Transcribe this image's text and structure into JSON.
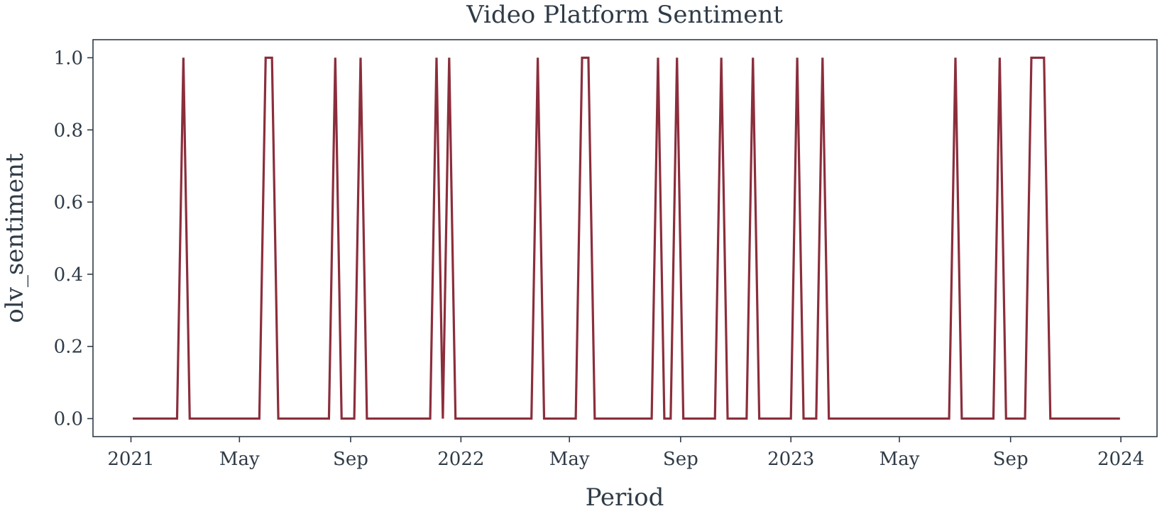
{
  "chart_data": {
    "type": "line",
    "title": "Video Platform Sentiment",
    "xlabel": "Period",
    "ylabel": "olv_sentiment",
    "x_tick_labels": [
      "2021",
      "May",
      "Sep",
      "2022",
      "May",
      "Sep",
      "2023",
      "May",
      "Sep",
      "2024"
    ],
    "x_tick_dates": [
      "2021-01-01",
      "2021-05-01",
      "2021-09-01",
      "2022-01-01",
      "2022-05-01",
      "2022-09-01",
      "2023-01-01",
      "2023-05-01",
      "2023-09-01",
      "2024-01-01"
    ],
    "y_ticks": [
      0.0,
      0.2,
      0.4,
      0.6,
      0.8,
      1.0
    ],
    "y_tick_labels": [
      "0.0",
      "0.2",
      "0.4",
      "0.6",
      "0.8",
      "1.0"
    ],
    "xlim": [
      "2020-11-20",
      "2024-02-10"
    ],
    "ylim": [
      -0.05,
      1.05
    ],
    "grid": false,
    "line_color": "#8b2e3c",
    "series": [
      {
        "x": [
          "2021-01-03",
          "2021-02-21",
          "2021-02-28",
          "2021-03-07",
          "2021-05-23",
          "2021-05-30",
          "2021-06-06",
          "2021-06-13",
          "2021-08-08",
          "2021-08-15",
          "2021-08-22",
          "2021-09-05",
          "2021-09-12",
          "2021-09-19",
          "2021-11-28",
          "2021-12-05",
          "2021-12-12",
          "2021-12-19",
          "2021-12-26",
          "2022-03-20",
          "2022-03-27",
          "2022-04-03",
          "2022-05-08",
          "2022-05-15",
          "2022-05-22",
          "2022-05-29",
          "2022-07-31",
          "2022-08-07",
          "2022-08-14",
          "2022-08-21",
          "2022-08-28",
          "2022-09-04",
          "2022-10-09",
          "2022-10-16",
          "2022-10-23",
          "2022-11-13",
          "2022-11-20",
          "2022-11-27",
          "2023-01-01",
          "2023-01-08",
          "2023-01-15",
          "2023-01-29",
          "2023-02-05",
          "2023-02-12",
          "2023-06-25",
          "2023-07-02",
          "2023-07-09",
          "2023-08-13",
          "2023-08-20",
          "2023-08-27",
          "2023-09-17",
          "2023-09-24",
          "2023-10-01",
          "2023-10-08",
          "2023-10-15",
          "2023-12-31"
        ],
        "values": [
          0,
          0,
          1,
          0,
          0,
          1,
          1,
          0,
          0,
          1,
          0,
          0,
          1,
          0,
          0,
          1,
          0,
          1,
          0,
          0,
          1,
          0,
          0,
          1,
          1,
          0,
          0,
          1,
          0,
          0,
          1,
          0,
          0,
          1,
          0,
          0,
          1,
          0,
          0,
          1,
          0,
          0,
          1,
          0,
          0,
          1,
          0,
          0,
          1,
          0,
          0,
          1,
          1,
          1,
          0,
          0
        ]
      }
    ]
  }
}
